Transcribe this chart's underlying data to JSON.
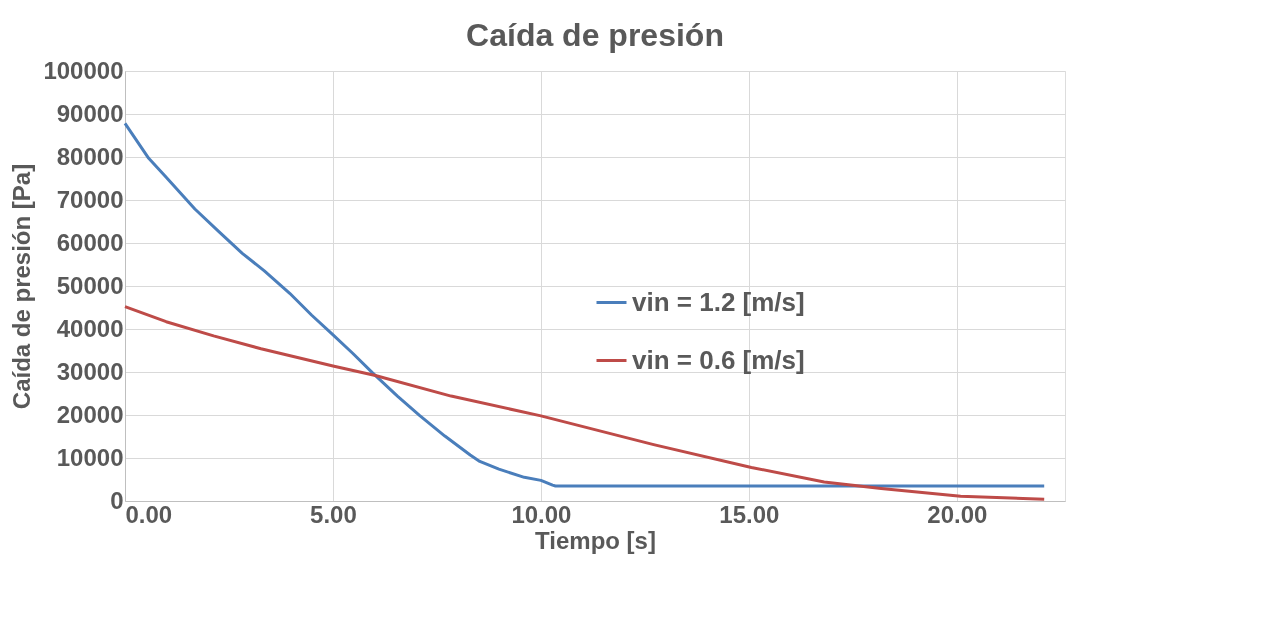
{
  "chart_data": {
    "type": "line",
    "title": "Caída de presión",
    "xlabel": "Tiempo [s]",
    "ylabel": "Caída de presión [Pa]",
    "xlim": [
      0,
      22.6
    ],
    "xticks": [
      {
        "value": 0,
        "label": "0.00"
      },
      {
        "value": 5,
        "label": "5.00"
      },
      {
        "value": 10,
        "label": "10.00"
      },
      {
        "value": 15,
        "label": "15.00"
      },
      {
        "value": 20,
        "label": "20.00"
      }
    ],
    "ylim": [
      0,
      100000
    ],
    "yticks": [
      0,
      10000,
      20000,
      30000,
      40000,
      50000,
      60000,
      70000,
      80000,
      90000,
      100000
    ],
    "grid": true,
    "legend": "right",
    "marker": "none",
    "line_style": "solid",
    "series": [
      {
        "name": "vin = 1.2 [m/s]",
        "color": "#4a7ebb",
        "x": [
          0,
          0.57,
          0.99,
          1.68,
          2.25,
          2.82,
          3.35,
          3.96,
          4.49,
          4.95,
          5.48,
          5.94,
          6.55,
          7.08,
          7.69,
          8.3,
          8.53,
          8.99,
          9.6,
          10.0,
          10.28,
          10.35,
          22.1
        ],
        "values": [
          87800,
          79700,
          75300,
          67900,
          62700,
          57600,
          53500,
          48300,
          43200,
          39100,
          34300,
          29900,
          24400,
          19900,
          15100,
          10700,
          9200,
          7400,
          5500,
          4800,
          3700,
          3500,
          3500
        ]
      },
      {
        "name": "vin = 0.6 [m/s]",
        "color": "#be4b48",
        "x": [
          0,
          0.99,
          2.13,
          3.27,
          5.0,
          6.02,
          7.84,
          10.0,
          12.71,
          15.06,
          16.81,
          18.18,
          20.09,
          22.1
        ],
        "values": [
          45200,
          41700,
          38400,
          35400,
          31400,
          29200,
          24400,
          19800,
          13100,
          7800,
          4400,
          2900,
          1100,
          400
        ]
      }
    ]
  }
}
